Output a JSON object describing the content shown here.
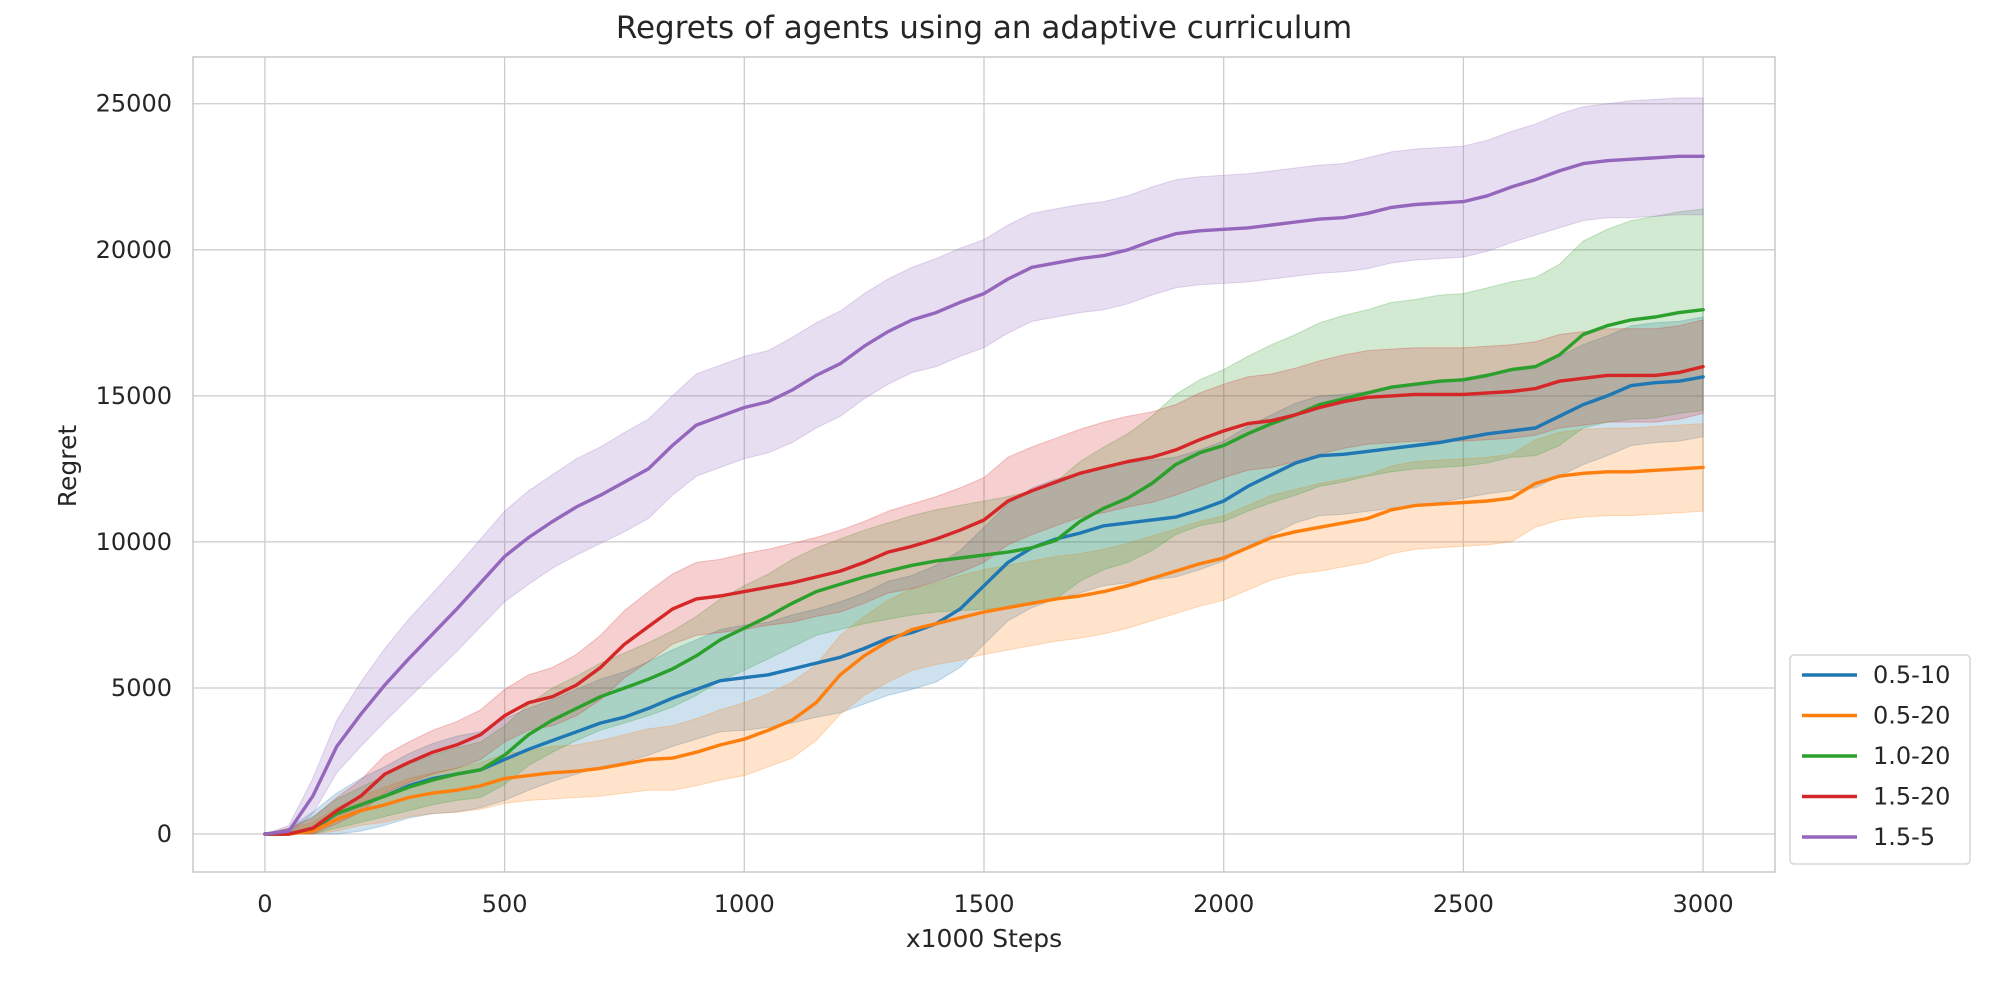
{
  "chart_data": {
    "type": "line",
    "title": "Regrets of agents using an adaptive curriculum",
    "xlabel": "x1000 Steps",
    "ylabel": "Regret",
    "xlim": [
      -150,
      3150
    ],
    "ylim": [
      -1300,
      26600
    ],
    "xticks": [
      0,
      500,
      1000,
      1500,
      2000,
      2500,
      3000
    ],
    "yticks": [
      0,
      5000,
      10000,
      15000,
      20000,
      25000
    ],
    "grid": true,
    "legend_position": "lower-right-outside",
    "x": [
      0,
      50,
      100,
      150,
      200,
      250,
      300,
      350,
      400,
      450,
      500,
      550,
      600,
      650,
      700,
      750,
      800,
      850,
      900,
      950,
      1000,
      1050,
      1100,
      1150,
      1200,
      1250,
      1300,
      1350,
      1400,
      1450,
      1500,
      1550,
      1600,
      1650,
      1700,
      1750,
      1800,
      1850,
      1900,
      1950,
      2000,
      2050,
      2100,
      2150,
      2200,
      2250,
      2300,
      2350,
      2400,
      2450,
      2500,
      2550,
      2600,
      2650,
      2700,
      2750,
      2800,
      2850,
      2900,
      2950,
      3000
    ],
    "series": [
      {
        "name": "0.5-10",
        "color": "#1f77b4",
        "values": [
          0,
          0,
          150,
          700,
          1000,
          1300,
          1650,
          1900,
          2050,
          2200,
          2550,
          2900,
          3200,
          3500,
          3800,
          4000,
          4300,
          4650,
          4950,
          5250,
          5350,
          5450,
          5650,
          5850,
          6050,
          6350,
          6700,
          6900,
          7200,
          7700,
          8500,
          9300,
          9800,
          10100,
          10300,
          10550,
          10650,
          10750,
          10850,
          11100,
          11400,
          11900,
          12300,
          12700,
          12950,
          13000,
          13100,
          13200,
          13300,
          13400,
          13550,
          13700,
          13800,
          13900,
          14300,
          14700,
          15000,
          15350,
          15450,
          15500,
          15650
        ],
        "band": [
          0,
          200,
          600,
          700,
          900,
          1000,
          1100,
          1200,
          1300,
          1300,
          1400,
          1400,
          1400,
          1450,
          1500,
          1550,
          1600,
          1650,
          1700,
          1750,
          1800,
          1800,
          1850,
          1850,
          1900,
          1900,
          1950,
          1950,
          2000,
          2000,
          2000,
          2000,
          2050,
          2050,
          2050,
          2050,
          2050,
          2050,
          2050,
          2050,
          2050,
          2050,
          2050,
          2050,
          2050,
          2050,
          2050,
          2050,
          2050,
          2050,
          2050,
          2050,
          2050,
          2050,
          2050,
          2050,
          2050,
          2050,
          2050,
          2050,
          2050
        ]
      },
      {
        "name": "0.5-20",
        "color": "#ff7f0e",
        "values": [
          0,
          0,
          100,
          500,
          800,
          1000,
          1250,
          1400,
          1500,
          1650,
          1900,
          2000,
          2100,
          2150,
          2250,
          2400,
          2550,
          2600,
          2800,
          3050,
          3250,
          3550,
          3900,
          4500,
          5450,
          6100,
          6600,
          7000,
          7200,
          7400,
          7600,
          7750,
          7900,
          8050,
          8150,
          8300,
          8500,
          8750,
          9000,
          9250,
          9450,
          9800,
          10150,
          10350,
          10500,
          10650,
          10800,
          11100,
          11250,
          11300,
          11350,
          11400,
          11500,
          12000,
          12250,
          12350,
          12400,
          12400,
          12450,
          12500,
          12550
        ],
        "band": [
          0,
          200,
          300,
          400,
          500,
          600,
          650,
          700,
          750,
          800,
          850,
          850,
          900,
          900,
          950,
          1000,
          1050,
          1100,
          1150,
          1200,
          1250,
          1250,
          1300,
          1300,
          1350,
          1350,
          1400,
          1400,
          1400,
          1450,
          1450,
          1450,
          1450,
          1450,
          1450,
          1450,
          1450,
          1450,
          1450,
          1450,
          1450,
          1450,
          1450,
          1450,
          1500,
          1500,
          1500,
          1500,
          1500,
          1500,
          1500,
          1500,
          1500,
          1500,
          1500,
          1500,
          1500,
          1500,
          1500,
          1500,
          1500
        ]
      },
      {
        "name": "1.0-20",
        "color": "#2ca02c",
        "values": [
          0,
          0,
          200,
          700,
          1000,
          1300,
          1600,
          1850,
          2050,
          2200,
          2700,
          3400,
          3900,
          4300,
          4700,
          5000,
          5300,
          5650,
          6100,
          6650,
          7050,
          7450,
          7900,
          8300,
          8550,
          8800,
          9000,
          9200,
          9350,
          9450,
          9550,
          9650,
          9800,
          10050,
          10700,
          11150,
          11500,
          12000,
          12650,
          13050,
          13300,
          13700,
          14050,
          14350,
          14700,
          14900,
          15100,
          15300,
          15400,
          15500,
          15550,
          15700,
          15900,
          16000,
          16400,
          17100,
          17400,
          17600,
          17700,
          17850,
          17950
        ],
        "band": [
          0,
          200,
          400,
          500,
          600,
          700,
          800,
          850,
          900,
          950,
          1000,
          1050,
          1100,
          1100,
          1150,
          1200,
          1250,
          1300,
          1350,
          1400,
          1450,
          1450,
          1500,
          1500,
          1550,
          1600,
          1650,
          1700,
          1750,
          1800,
          1850,
          1900,
          1950,
          2000,
          2050,
          2100,
          2200,
          2300,
          2400,
          2500,
          2600,
          2650,
          2700,
          2750,
          2800,
          2850,
          2850,
          2900,
          2900,
          2950,
          2950,
          3000,
          3000,
          3050,
          3100,
          3200,
          3300,
          3400,
          3450,
          3450,
          3450
        ]
      },
      {
        "name": "1.5-20",
        "color": "#d62728",
        "values": [
          0,
          0,
          200,
          800,
          1300,
          2050,
          2450,
          2800,
          3050,
          3400,
          4050,
          4500,
          4700,
          5100,
          5700,
          6500,
          7100,
          7700,
          8050,
          8150,
          8300,
          8450,
          8600,
          8800,
          9000,
          9300,
          9650,
          9850,
          10100,
          10400,
          10750,
          11400,
          11750,
          12050,
          12350,
          12550,
          12750,
          12900,
          13150,
          13500,
          13800,
          14050,
          14150,
          14350,
          14600,
          14800,
          14950,
          15000,
          15050,
          15050,
          15050,
          15100,
          15150,
          15250,
          15500,
          15600,
          15700,
          15700,
          15700,
          15800,
          16000
        ],
        "band": [
          0,
          200,
          350,
          450,
          550,
          650,
          700,
          750,
          800,
          850,
          900,
          950,
          1000,
          1050,
          1100,
          1150,
          1200,
          1200,
          1250,
          1250,
          1300,
          1300,
          1350,
          1350,
          1400,
          1400,
          1400,
          1450,
          1450,
          1450,
          1450,
          1500,
          1500,
          1500,
          1500,
          1550,
          1550,
          1550,
          1550,
          1600,
          1600,
          1600,
          1600,
          1600,
          1600,
          1600,
          1600,
          1600,
          1600,
          1600,
          1600,
          1600,
          1600,
          1600,
          1600,
          1600,
          1600,
          1600,
          1600,
          1600,
          1600
        ]
      },
      {
        "name": "1.5-5",
        "color": "#9467bd",
        "values": [
          0,
          100,
          1300,
          3000,
          4100,
          5100,
          6000,
          6850,
          7700,
          8600,
          9500,
          10150,
          10700,
          11200,
          11600,
          12050,
          12500,
          13300,
          14000,
          14300,
          14600,
          14800,
          15200,
          15700,
          16100,
          16700,
          17200,
          17600,
          17850,
          18200,
          18500,
          19000,
          19400,
          19550,
          19700,
          19800,
          20000,
          20300,
          20550,
          20650,
          20700,
          20750,
          20850,
          20950,
          21050,
          21100,
          21250,
          21450,
          21550,
          21600,
          21650,
          21850,
          22150,
          22400,
          22700,
          22950,
          23050,
          23100,
          23150,
          23200,
          23200
        ],
        "band": [
          0,
          200,
          600,
          900,
          1100,
          1250,
          1350,
          1400,
          1450,
          1500,
          1550,
          1600,
          1600,
          1650,
          1650,
          1700,
          1700,
          1700,
          1750,
          1750,
          1750,
          1750,
          1800,
          1800,
          1800,
          1800,
          1800,
          1800,
          1850,
          1850,
          1850,
          1850,
          1850,
          1850,
          1850,
          1850,
          1850,
          1850,
          1850,
          1850,
          1850,
          1850,
          1850,
          1850,
          1850,
          1850,
          1900,
          1900,
          1900,
          1900,
          1900,
          1900,
          1900,
          1900,
          1950,
          1950,
          1950,
          2000,
          2000,
          2000,
          2000
        ]
      }
    ]
  }
}
